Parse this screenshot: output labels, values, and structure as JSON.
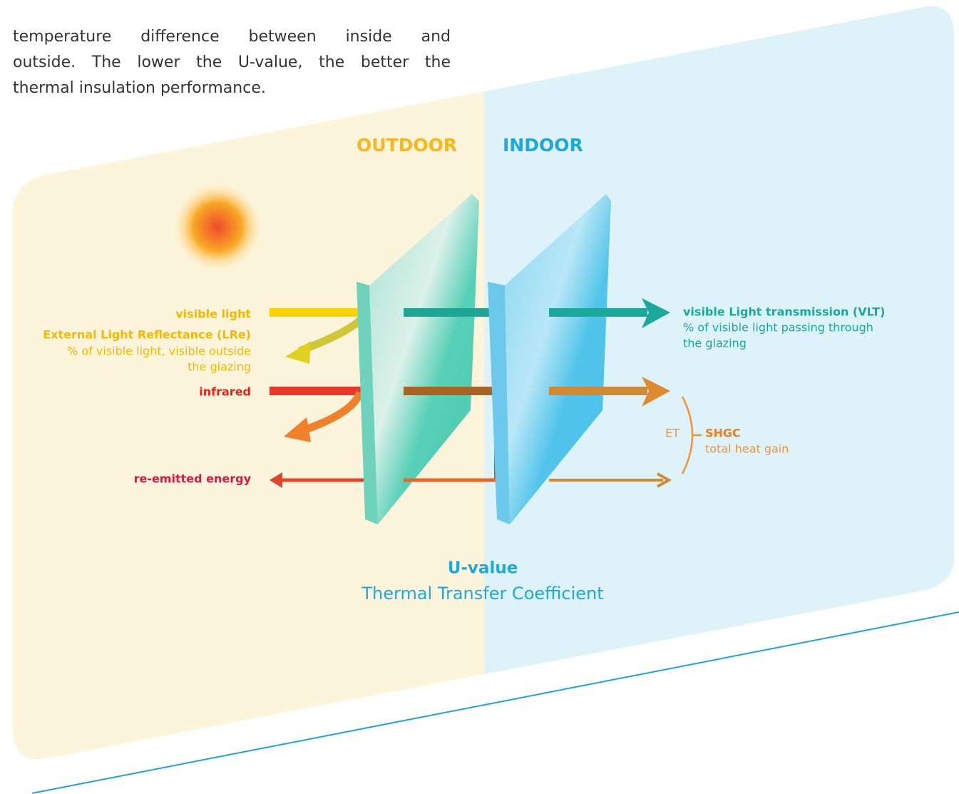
{
  "intro": {
    "lines": [
      "temperature difference between inside and",
      "outside. The lower the U-value, the better the",
      "thermal insulation performance."
    ]
  },
  "diagram": {
    "outdoor": "OUTDOOR",
    "indoor": "INDOOR",
    "left_labels": {
      "visible_light": "visible light",
      "lre_title": "External Light Reflectance (LRe)",
      "lre_desc": [
        "% of visible light, visible outside",
        "the glazing"
      ],
      "infrared": "infrared",
      "reemitted": "re-emitted energy"
    },
    "right_labels": {
      "vlt_title": "visible Light transmission (VLT)",
      "vlt_desc": [
        "% of visible light passing through",
        "the glazing"
      ],
      "et": "ET",
      "shgc_title": "SHGC",
      "shgc_desc": "total heat gain"
    },
    "uvalue": {
      "title": "U-value",
      "subtitle": "Thermal Transfer Coefficient"
    }
  }
}
